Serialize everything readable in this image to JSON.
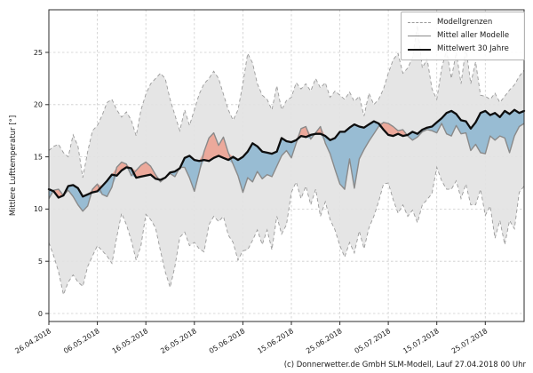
{
  "footer": {
    "credit": "(c) Donnerwetter.de GmbH SLM-Modell, Lauf 27.04.2018 00 Uhr"
  },
  "legend": {
    "position": "top-right",
    "entries": [
      {
        "label": "Modellgrenzen",
        "style": "dashed-gray"
      },
      {
        "label": "Mittel aller Modelle",
        "style": "solid-gray"
      },
      {
        "label": "Mittelwert 30 Jahre",
        "style": "thick-black"
      }
    ]
  },
  "colors": {
    "band_fill": "#e3e3e3",
    "band_edge": "#9a9a9a",
    "blue_fill": "#84b2ce",
    "red_fill": "#ee9a88",
    "model_mean_line": "#8a8a8a",
    "mean30_line": "#0d0d0d",
    "grid": "#cccccc",
    "spine": "#2b2b2b",
    "tick_text": "#1a1a1a"
  },
  "chart_data": {
    "type": "line",
    "title": "",
    "xlabel": "",
    "ylabel": "Mittlere Lufttemperatur [°]",
    "ylim": [
      0,
      25
    ],
    "yticks": [
      0,
      5,
      10,
      15,
      20,
      25
    ],
    "grid": true,
    "x": {
      "interval": "daily",
      "points": 99,
      "tick_days": [
        0,
        10,
        20,
        30,
        40,
        50,
        60,
        70,
        80,
        90
      ],
      "tick_labels": [
        "26.04.2018",
        "06.05.2018",
        "16.05.2018",
        "26.05.2018",
        "05.06.2018",
        "15.06.2018",
        "25.06.2018",
        "05.07.2018",
        "15.07.2018",
        "25.07.2018"
      ]
    },
    "series": [
      {
        "name": "Modellgrenzen (oben)",
        "style": "dashed",
        "values": [
          15.6,
          16.0,
          16.2,
          15.4,
          15.0,
          17.1,
          16.0,
          13.0,
          15.5,
          17.5,
          18.0,
          19.0,
          20.2,
          20.5,
          19.5,
          18.8,
          19.3,
          18.5,
          17.0,
          19.5,
          21.0,
          22.0,
          22.5,
          23.0,
          22.5,
          20.5,
          19.0,
          17.5,
          19.5,
          18.0,
          19.5,
          21.0,
          22.0,
          22.5,
          23.2,
          22.5,
          21.0,
          19.5,
          18.5,
          19.5,
          22.0,
          24.9,
          24.0,
          22.0,
          20.9,
          20.5,
          19.5,
          21.8,
          19.5,
          20.4,
          20.7,
          22.1,
          21.5,
          22.0,
          21.3,
          22.5,
          21.6,
          22.1,
          20.7,
          21.3,
          20.9,
          20.5,
          21.2,
          20.3,
          20.8,
          18.9,
          21.1,
          20.0,
          20.5,
          21.5,
          23.0,
          24.3,
          24.9,
          23.0,
          23.5,
          24.5,
          27.6,
          23.5,
          24.4,
          21.5,
          20.5,
          23.5,
          25.2,
          22.5,
          25.0,
          22.0,
          25.5,
          22.0,
          24.1,
          20.9,
          20.8,
          20.5,
          21.1,
          20.2,
          20.8,
          21.4,
          21.9,
          22.7,
          23.3
        ]
      },
      {
        "name": "Modellgrenzen (unten)",
        "style": "dashed",
        "values": [
          6.8,
          5.5,
          4.0,
          1.8,
          3.0,
          3.7,
          3.0,
          2.6,
          4.5,
          5.5,
          6.5,
          6.0,
          5.5,
          4.8,
          7.3,
          9.6,
          8.5,
          7.0,
          5.1,
          6.5,
          9.5,
          9.0,
          8.2,
          6.0,
          4.0,
          2.5,
          4.5,
          7.3,
          7.8,
          6.5,
          6.8,
          6.2,
          5.9,
          8.5,
          9.3,
          8.8,
          9.3,
          7.5,
          6.8,
          5.1,
          6.0,
          6.1,
          7.0,
          8.0,
          6.6,
          8.0,
          6.1,
          9.3,
          7.6,
          8.5,
          11.6,
          12.6,
          11.0,
          12.2,
          10.4,
          11.9,
          9.3,
          10.7,
          9.0,
          8.0,
          6.5,
          5.4,
          6.8,
          5.8,
          7.9,
          6.2,
          8.2,
          9.3,
          10.7,
          12.4,
          12.5,
          10.9,
          9.6,
          10.4,
          9.3,
          9.9,
          8.7,
          10.4,
          10.9,
          11.5,
          14.0,
          12.7,
          11.9,
          11.9,
          12.7,
          11.0,
          12.4,
          10.4,
          10.4,
          11.9,
          9.4,
          10.3,
          7.2,
          8.9,
          6.6,
          8.9,
          8.1,
          11.6,
          12.2
        ]
      },
      {
        "name": "Mittel aller Modelle",
        "style": "solid-gray",
        "values": [
          11.0,
          11.8,
          11.9,
          11.3,
          11.8,
          11.2,
          10.4,
          9.8,
          10.3,
          11.9,
          12.4,
          11.4,
          11.2,
          12.1,
          14.0,
          14.5,
          14.3,
          13.2,
          13.7,
          14.2,
          14.5,
          14.1,
          13.3,
          12.6,
          13.0,
          13.4,
          13.1,
          14.0,
          14.0,
          13.0,
          11.7,
          13.5,
          15.5,
          16.8,
          17.3,
          16.1,
          16.9,
          15.4,
          14.3,
          13.2,
          11.6,
          13.0,
          12.6,
          13.6,
          12.9,
          13.3,
          13.1,
          14.1,
          15.1,
          15.6,
          14.9,
          16.3,
          17.7,
          17.9,
          16.7,
          17.3,
          17.9,
          16.3,
          15.3,
          13.8,
          12.4,
          11.9,
          14.8,
          12.0,
          14.8,
          15.7,
          16.5,
          17.2,
          17.9,
          18.3,
          18.2,
          17.9,
          17.5,
          17.6,
          17.0,
          16.6,
          16.9,
          17.4,
          17.6,
          17.5,
          17.3,
          18.2,
          17.2,
          17.0,
          18.0,
          17.2,
          17.3,
          15.6,
          16.2,
          15.4,
          15.3,
          17.0,
          16.6,
          17.0,
          16.8,
          15.4,
          17.0,
          17.9,
          18.2
        ]
      },
      {
        "name": "Mittelwert 30 Jahre",
        "style": "thick-black",
        "values": [
          11.9,
          11.7,
          11.1,
          11.3,
          12.2,
          12.3,
          12.0,
          11.2,
          11.4,
          11.6,
          11.7,
          12.2,
          12.7,
          13.3,
          13.2,
          13.7,
          14.0,
          13.9,
          13.0,
          13.1,
          13.2,
          13.3,
          12.9,
          12.8,
          13.0,
          13.5,
          13.6,
          13.9,
          14.9,
          15.1,
          14.7,
          14.6,
          14.7,
          14.6,
          14.9,
          15.1,
          14.9,
          14.7,
          15.0,
          14.7,
          15.0,
          15.5,
          16.3,
          16.0,
          15.5,
          15.4,
          15.3,
          15.5,
          16.8,
          16.5,
          16.4,
          16.6,
          17.0,
          16.9,
          17.1,
          17.2,
          17.2,
          17.0,
          16.6,
          16.8,
          17.4,
          17.4,
          17.8,
          18.1,
          17.9,
          17.8,
          18.1,
          18.4,
          18.2,
          17.6,
          17.1,
          17.0,
          17.2,
          17.0,
          17.1,
          17.4,
          17.2,
          17.6,
          17.8,
          17.9,
          18.3,
          18.7,
          19.2,
          19.4,
          19.1,
          18.5,
          18.4,
          17.7,
          18.3,
          19.2,
          19.4,
          19.0,
          19.2,
          18.8,
          19.4,
          19.1,
          19.5,
          19.2,
          19.4
        ]
      }
    ],
    "fills": [
      {
        "name": "Modellgrenzen-Band",
        "between": [
          "Modellgrenzen (oben)",
          "Modellgrenzen (unten)"
        ],
        "color": "#e3e3e3"
      },
      {
        "name": "Modelle unter Mittelwert",
        "between": [
          "Mittelwert 30 Jahre",
          "Mittel aller Modelle"
        ],
        "where": "mean_below",
        "color": "#84b2ce"
      },
      {
        "name": "Modelle ueber Mittelwert",
        "between": [
          "Mittel aller Modelle",
          "Mittelwert 30 Jahre"
        ],
        "where": "mean_above",
        "color": "#ee9a88"
      }
    ],
    "legend_entries": [
      "Modellgrenzen",
      "Mittel aller Modelle",
      "Mittelwert 30 Jahre"
    ]
  }
}
